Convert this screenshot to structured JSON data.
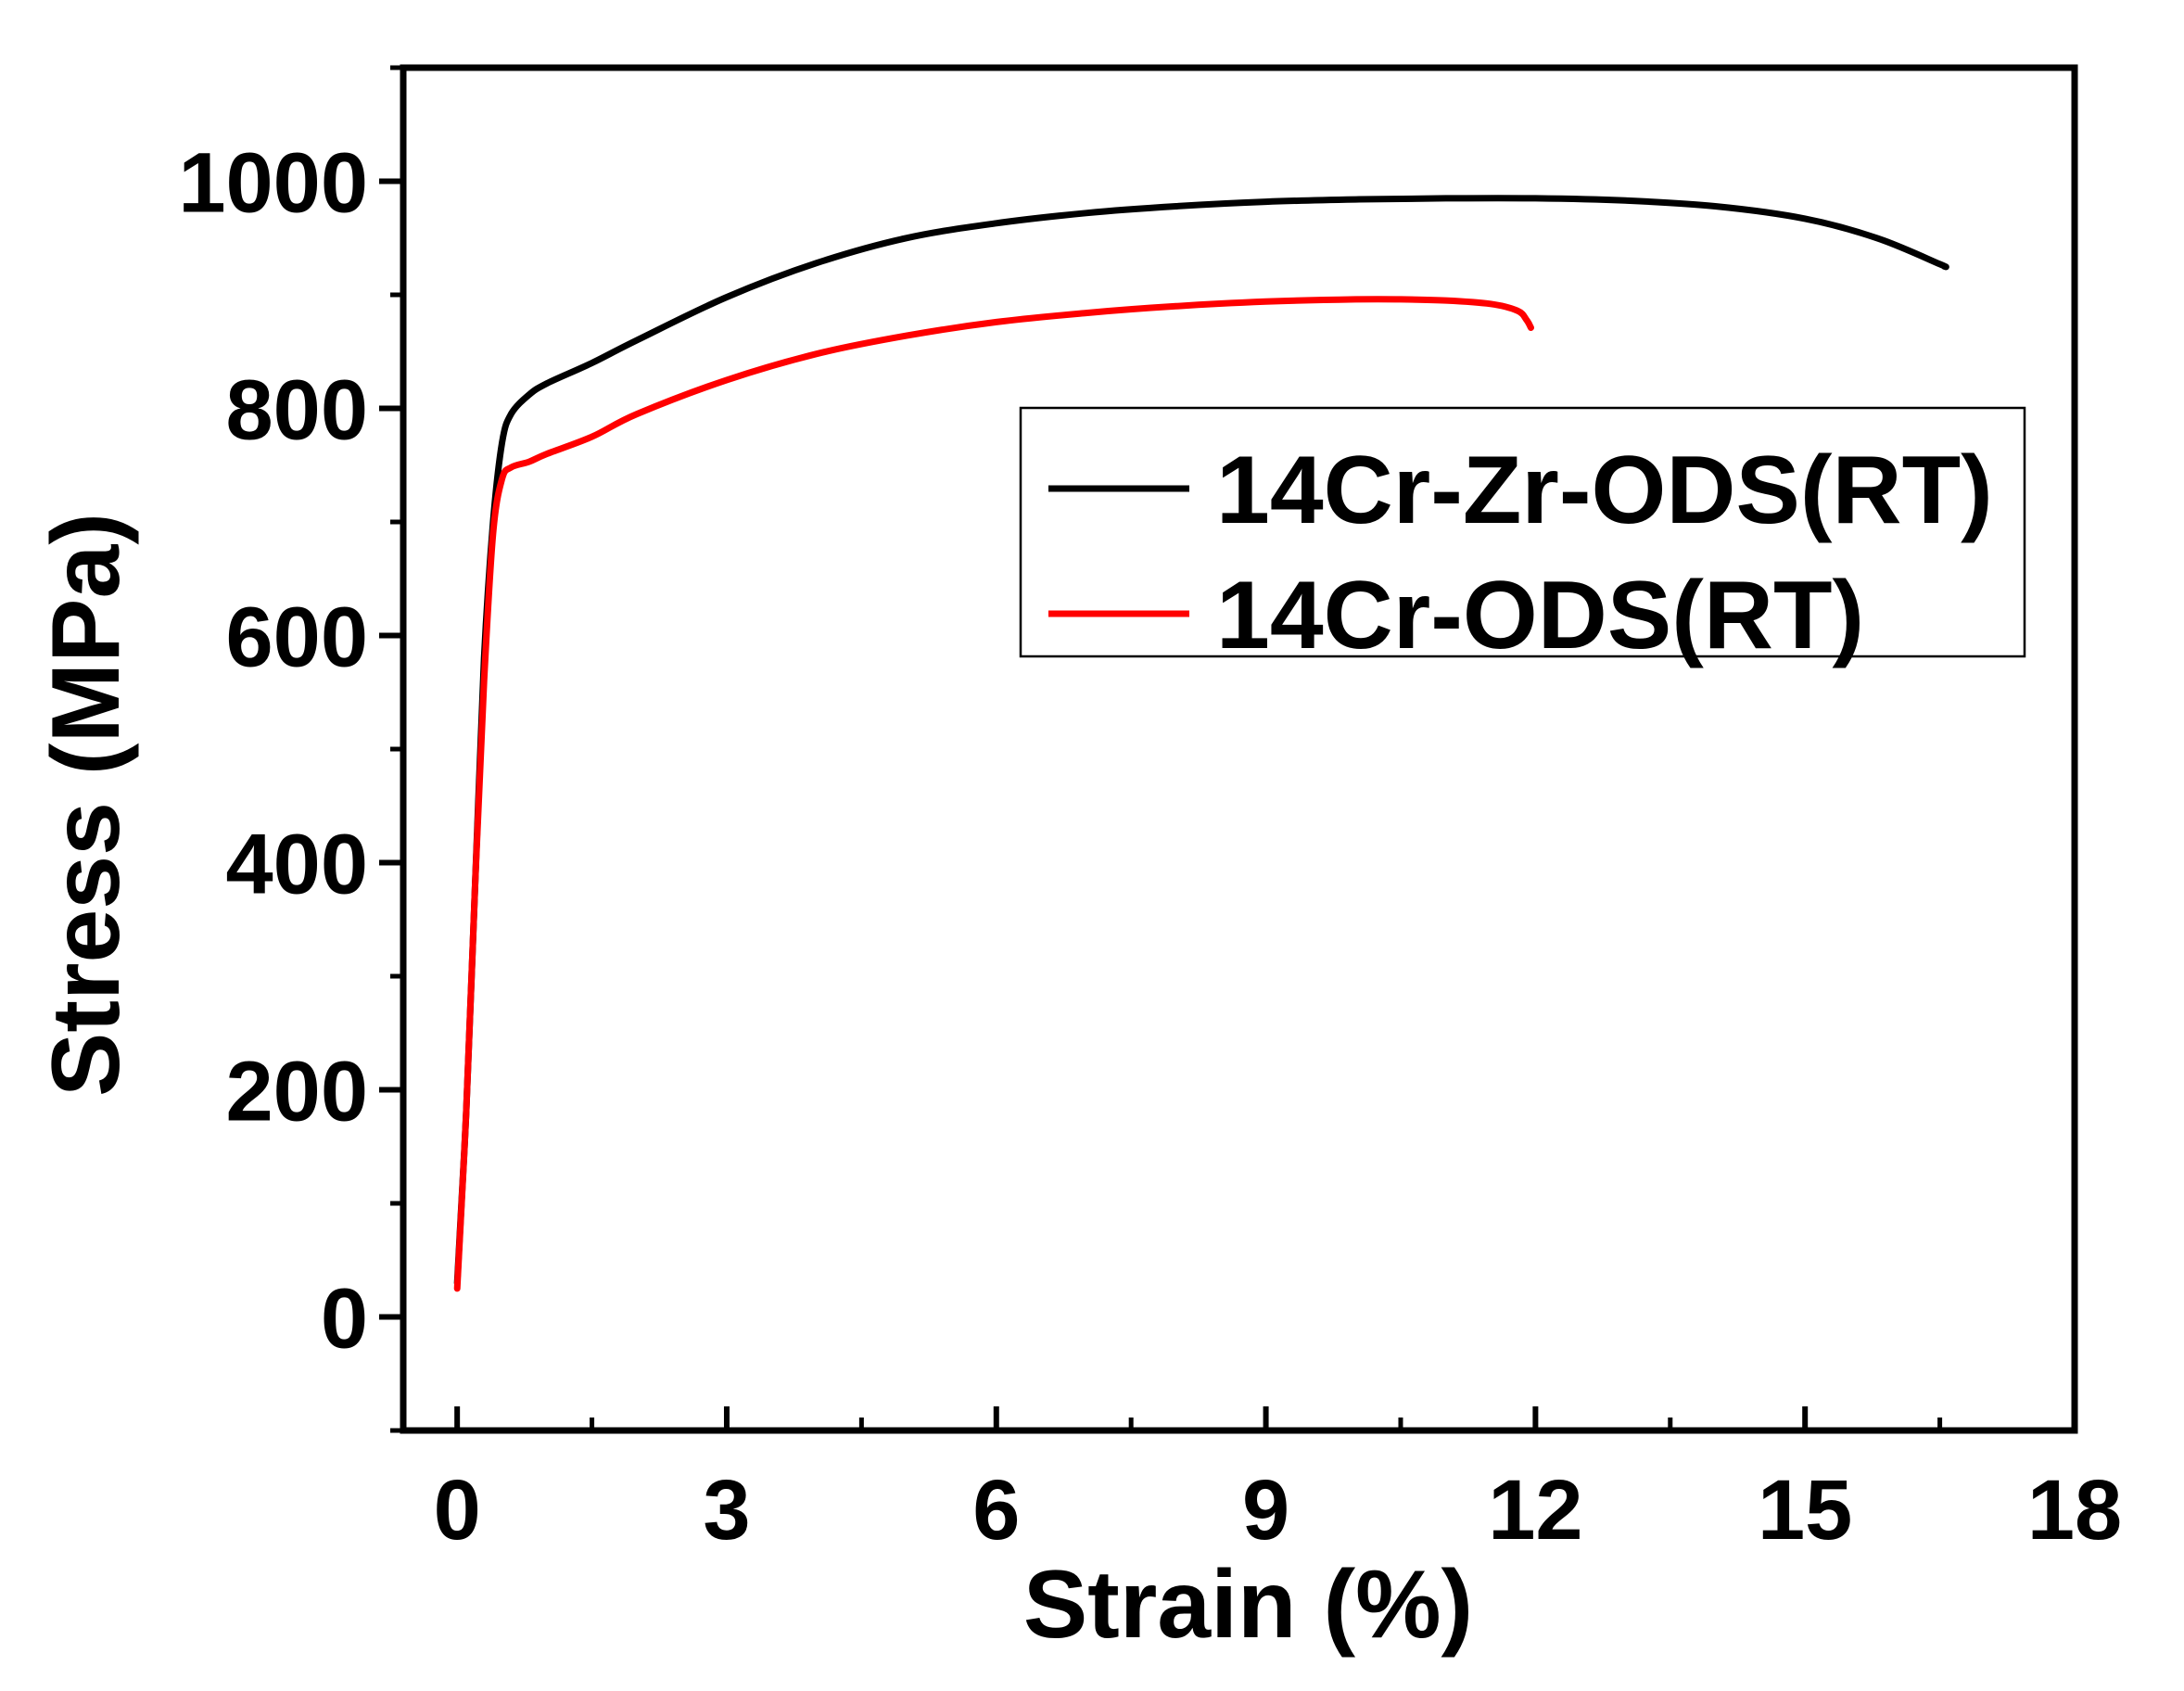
{
  "chart_data": {
    "type": "line",
    "title": "",
    "xlabel": "Strain (%)",
    "ylabel": "Stress (MPa)",
    "xlim": [
      -0.6,
      18
    ],
    "ylim": [
      -100,
      1100
    ],
    "xticks": [
      0,
      3,
      6,
      9,
      12,
      15,
      18
    ],
    "yticks": [
      0,
      200,
      400,
      600,
      800,
      1000
    ],
    "xtick_labels": [
      "0",
      "3",
      "6",
      "9",
      "12",
      "15",
      "18"
    ],
    "ytick_labels": [
      "0",
      "200",
      "400",
      "600",
      "800",
      "1000"
    ],
    "grid": false,
    "legend": {
      "placement": "top-right"
    },
    "series": [
      {
        "name": "14Cr-Zr-ODS(RT)",
        "color": "#000000",
        "x": [
          0.0,
          0.1,
          0.2,
          0.3,
          0.4,
          0.5,
          0.6,
          0.8,
          1.0,
          1.5,
          2.0,
          3.0,
          4.0,
          5.0,
          6.0,
          7.0,
          8.0,
          9.0,
          10.0,
          11.0,
          12.0,
          13.0,
          14.0,
          15.0,
          15.8,
          16.5,
          16.55
        ],
        "y": [
          30,
          180,
          380,
          580,
          700,
          770,
          795,
          812,
          822,
          840,
          860,
          898,
          928,
          950,
          963,
          972,
          978,
          982,
          984,
          985,
          985,
          983,
          978,
          967,
          950,
          927,
          925
        ]
      },
      {
        "name": "14Cr-ODS(RT)",
        "color": "#ff0000",
        "x": [
          0.0,
          0.1,
          0.2,
          0.3,
          0.4,
          0.5,
          0.6,
          0.8,
          1.0,
          1.5,
          2.0,
          3.0,
          4.0,
          5.0,
          6.0,
          7.0,
          8.0,
          9.0,
          10.0,
          10.5,
          11.0,
          11.5,
          11.8,
          11.9,
          11.95
        ],
        "y": [
          25,
          180,
          380,
          560,
          690,
          738,
          748,
          753,
          760,
          775,
          795,
          825,
          848,
          864,
          876,
          884,
          890,
          894,
          896,
          896,
          895,
          892,
          886,
          878,
          871
        ]
      }
    ]
  }
}
